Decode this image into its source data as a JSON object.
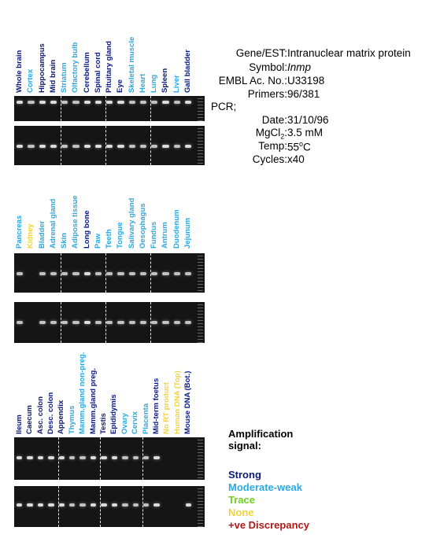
{
  "colors": {
    "strong": "#0b1a7a",
    "moderate": "#2aa8e0",
    "trace": "#6fcf1f",
    "none": "#f2d23a",
    "discrepancy": "#b01818"
  },
  "panels": [
    {
      "lanes": [
        {
          "label": "Whole brain",
          "cat": "strong"
        },
        {
          "label": "Cortex",
          "cat": "moderate"
        },
        {
          "label": "Hippocampus",
          "cat": "strong"
        },
        {
          "label": "Mid brain",
          "cat": "strong"
        },
        {
          "label": "Striatum",
          "cat": "moderate"
        },
        {
          "label": "Olfactory bulb",
          "cat": "moderate"
        },
        {
          "label": "Cerebellum",
          "cat": "strong"
        },
        {
          "label": "Spinal cord",
          "cat": "strong"
        },
        {
          "label": "Pituitary gland",
          "cat": "strong"
        },
        {
          "label": "Eye",
          "cat": "strong"
        },
        {
          "label": "Skeletal muscle",
          "cat": "moderate"
        },
        {
          "label": "Heart",
          "cat": "moderate"
        },
        {
          "label": "Lung",
          "cat": "moderate"
        },
        {
          "label": "Spleen",
          "cat": "strong"
        },
        {
          "label": "Liver",
          "cat": "moderate"
        },
        {
          "label": "Gall bladder",
          "cat": "strong"
        }
      ]
    },
    {
      "lanes": [
        {
          "label": "Pancreas",
          "cat": "moderate"
        },
        {
          "label": "Kidney",
          "cat": "none"
        },
        {
          "label": "Bladder",
          "cat": "moderate"
        },
        {
          "label": "Adrenal gland",
          "cat": "moderate"
        },
        {
          "label": "Skin",
          "cat": "moderate"
        },
        {
          "label": "Adipose tissue",
          "cat": "moderate"
        },
        {
          "label": "Long bone",
          "cat": "strong"
        },
        {
          "label": "Paw",
          "cat": "moderate"
        },
        {
          "label": "Teeth",
          "cat": "moderate"
        },
        {
          "label": "Tongue",
          "cat": "moderate"
        },
        {
          "label": "Salivary gland",
          "cat": "moderate"
        },
        {
          "label": "Oesophagus",
          "cat": "moderate"
        },
        {
          "label": "Fundus",
          "cat": "moderate"
        },
        {
          "label": "Antrum",
          "cat": "moderate"
        },
        {
          "label": "Duodenum",
          "cat": "moderate"
        },
        {
          "label": "Jejunum",
          "cat": "moderate"
        }
      ]
    },
    {
      "lanes": [
        {
          "label": "Ileum",
          "cat": "strong"
        },
        {
          "label": "Caecum",
          "cat": "strong"
        },
        {
          "label": "Asc. colon",
          "cat": "strong"
        },
        {
          "label": "Desc. colon",
          "cat": "strong"
        },
        {
          "label": "Appendix",
          "cat": "strong"
        },
        {
          "label": "Thymus",
          "cat": "moderate"
        },
        {
          "label": "Mamm.gland non-preg.",
          "cat": "moderate"
        },
        {
          "label": "Mamm.gland preg.",
          "cat": "strong"
        },
        {
          "label": "Testis",
          "cat": "strong"
        },
        {
          "label": "Epididymis",
          "cat": "strong"
        },
        {
          "label": "Ovary",
          "cat": "moderate"
        },
        {
          "label": "Cervix",
          "cat": "moderate"
        },
        {
          "label": "Placenta",
          "cat": "moderate"
        },
        {
          "label": "Mid-term foetus",
          "cat": "strong"
        },
        {
          "label": "No RT product",
          "cat": "none"
        },
        {
          "label": "Human DNA (Top)",
          "cat": "none"
        },
        {
          "label": "Mouse DNA (Bot.)",
          "cat": "strong"
        }
      ]
    }
  ],
  "info": [
    {
      "label": "Gene/EST:",
      "value": "Intranuclear matrix protein"
    },
    {
      "label": "Symbol:",
      "value": "Inmp"
    },
    {
      "label": "EMBL Ac. No.:",
      "value": "U33198"
    },
    {
      "label": "Primers:",
      "value": "96/381"
    },
    {
      "label": "PCR;",
      "value": ""
    },
    {
      "label": "Date:",
      "value": "31/10/96"
    },
    {
      "label": "MgCl",
      "sub": "2",
      "label_after": ":",
      "value": "3.5 mM"
    },
    {
      "label": "Temp:",
      "value": "55",
      "sup": "o",
      "value_after": "C"
    },
    {
      "label": "Cycles:",
      "value": "x40"
    }
  ],
  "legend": {
    "title_line1": "Amplification",
    "title_line2": "signal:",
    "items": [
      {
        "label": "Strong",
        "cat": "strong"
      },
      {
        "label": "Moderate-weak",
        "cat": "moderate"
      },
      {
        "label": "Trace",
        "cat": "trace"
      },
      {
        "label": "None",
        "cat": "none"
      },
      {
        "label": "+ve Discrepancy",
        "cat": "discrepancy"
      }
    ]
  }
}
